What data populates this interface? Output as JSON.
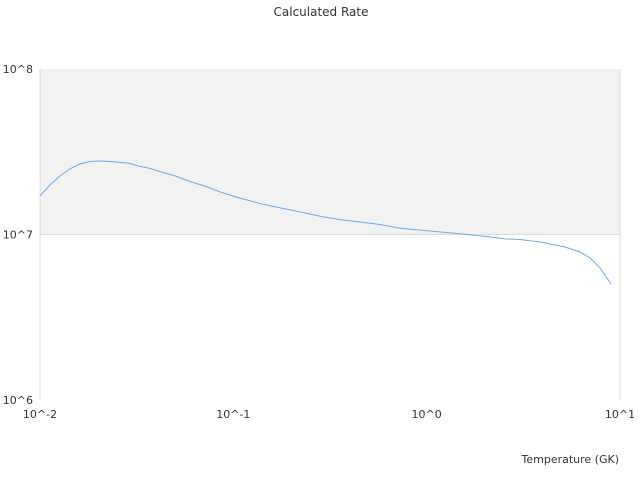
{
  "chart_data": {
    "type": "line",
    "title": "Calculated Rate",
    "xlabel": "Temperature (GK)",
    "ylabel": "",
    "xscale": "log",
    "yscale": "log",
    "xlim": [
      0.01,
      10
    ],
    "ylim": [
      1000000,
      100000000
    ],
    "x_tick_labels": [
      "10^-2",
      "10^-1",
      "10^0",
      "10^1"
    ],
    "x_ticks": [
      0.01,
      0.1,
      1,
      10
    ],
    "y_tick_labels": [
      "10^6",
      "10^7",
      "10^8"
    ],
    "y_ticks": [
      1000000,
      10000000,
      100000000
    ],
    "grid": false,
    "band": {
      "from": 10000000,
      "to": 100000000,
      "color": "#f2f2f2"
    },
    "line_color": "#6aaaf0",
    "series": [
      {
        "x": [
          0.01,
          0.01127,
          0.01269,
          0.01429,
          0.0161,
          0.01815,
          0.0204,
          0.023,
          0.0285,
          0.0329,
          0.0371,
          0.0418,
          0.0499,
          0.0597,
          0.0714,
          0.0853,
          0.108,
          0.1374,
          0.174,
          0.221,
          0.281,
          0.356,
          0.452,
          0.574,
          0.728,
          1.04,
          1.49,
          2.13,
          2.54,
          3.04,
          3.86,
          5.2,
          6.21,
          7.0,
          7.88,
          8.99
        ],
        "y": [
          17100000,
          19900000,
          22600000,
          24900000,
          26700000,
          27600000,
          27800000,
          27600000,
          27000000,
          25800000,
          25100000,
          24000000,
          22600000,
          20900000,
          19600000,
          18100000,
          16600000,
          15400000,
          14500000,
          13700000,
          12900000,
          12300000,
          11900000,
          11500000,
          10900000,
          10500000,
          10100000,
          9660000,
          9400000,
          9330000,
          9010000,
          8400000,
          7840000,
          7210000,
          6280000,
          5020000
        ]
      }
    ]
  }
}
